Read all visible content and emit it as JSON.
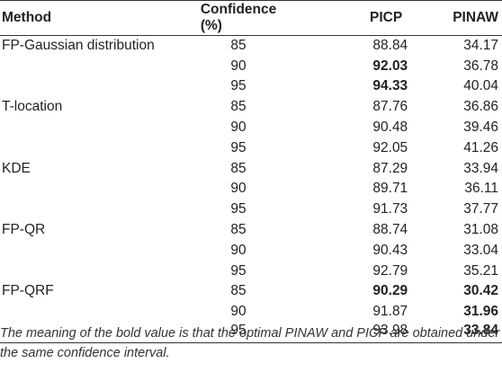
{
  "table": {
    "headers": {
      "method": "Method",
      "confidence": "Confidence (%)",
      "picp": "PICP",
      "pinaw": "PINAW"
    },
    "rows": [
      {
        "method": "FP-Gaussian distribution",
        "confidence": "85",
        "picp": "88.84",
        "pinaw": "34.17",
        "picp_bold": false,
        "pinaw_bold": false
      },
      {
        "method": "",
        "confidence": "90",
        "picp": "92.03",
        "pinaw": "36.78",
        "picp_bold": true,
        "pinaw_bold": false
      },
      {
        "method": "",
        "confidence": "95",
        "picp": "94.33",
        "pinaw": "40.04",
        "picp_bold": true,
        "pinaw_bold": false
      },
      {
        "method": "T-location",
        "confidence": "85",
        "picp": "87.76",
        "pinaw": "36.86",
        "picp_bold": false,
        "pinaw_bold": false
      },
      {
        "method": "",
        "confidence": "90",
        "picp": "90.48",
        "pinaw": "39.46",
        "picp_bold": false,
        "pinaw_bold": false
      },
      {
        "method": "",
        "confidence": "95",
        "picp": "92.05",
        "pinaw": "41.26",
        "picp_bold": false,
        "pinaw_bold": false
      },
      {
        "method": "KDE",
        "confidence": "85",
        "picp": "87.29",
        "pinaw": "33.94",
        "picp_bold": false,
        "pinaw_bold": false
      },
      {
        "method": "",
        "confidence": "90",
        "picp": "89.71",
        "pinaw": "36.11",
        "picp_bold": false,
        "pinaw_bold": false
      },
      {
        "method": "",
        "confidence": "95",
        "picp": "91.73",
        "pinaw": "37.77",
        "picp_bold": false,
        "pinaw_bold": false
      },
      {
        "method": "FP-QR",
        "confidence": "85",
        "picp": "88.74",
        "pinaw": "31.08",
        "picp_bold": false,
        "pinaw_bold": false
      },
      {
        "method": "",
        "confidence": "90",
        "picp": "90.43",
        "pinaw": "33.04",
        "picp_bold": false,
        "pinaw_bold": false
      },
      {
        "method": "",
        "confidence": "95",
        "picp": "92.79",
        "pinaw": "35.21",
        "picp_bold": false,
        "pinaw_bold": false
      },
      {
        "method": "FP-QRF",
        "confidence": "85",
        "picp": "90.29",
        "pinaw": "30.42",
        "picp_bold": true,
        "pinaw_bold": true
      },
      {
        "method": "",
        "confidence": "90",
        "picp": "91.87",
        "pinaw": "31.96",
        "picp_bold": false,
        "pinaw_bold": true
      },
      {
        "method": "",
        "confidence": "95",
        "picp": "93.98",
        "pinaw": "33.84",
        "picp_bold": false,
        "pinaw_bold": true
      }
    ]
  },
  "footnote": "The meaning of the bold value is that the optimal PINAW and PICP are obtained under the same confidence interval."
}
